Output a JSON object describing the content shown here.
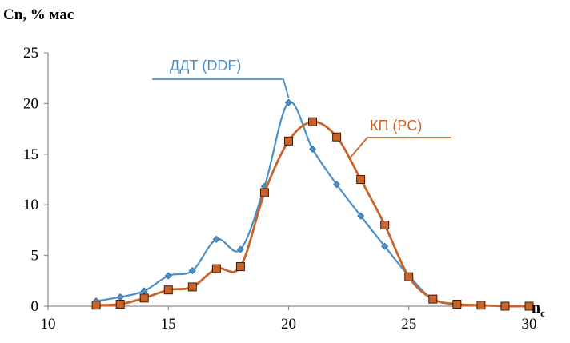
{
  "chart_data": {
    "type": "line",
    "ylabel": "Cn, % мас",
    "xlabel_main": "n",
    "xlabel_sub": "c",
    "xlim": [
      10,
      30
    ],
    "ylim": [
      0,
      25
    ],
    "x_ticks": [
      "10",
      "15",
      "20",
      "25",
      "30"
    ],
    "y_ticks": [
      "0",
      "5",
      "10",
      "15",
      "20",
      "25"
    ],
    "grid": false,
    "series": [
      {
        "name": "ДДТ (DDF)",
        "color": "#4a8fc9",
        "marker": "diamond",
        "x": [
          12,
          13,
          14,
          15,
          16,
          17,
          18,
          19,
          20,
          21,
          22,
          23,
          24,
          25,
          26,
          27,
          28,
          29,
          30
        ],
        "y": [
          0.5,
          0.9,
          1.5,
          3.0,
          3.5,
          6.6,
          5.6,
          11.8,
          20.1,
          15.5,
          12.0,
          8.9,
          5.9,
          3.0,
          0.7,
          0.2,
          0.1,
          0.0,
          0.0
        ]
      },
      {
        "name": "КП (PC)",
        "color": "#c8632a",
        "marker": "square",
        "x": [
          12,
          13,
          14,
          15,
          16,
          17,
          18,
          19,
          20,
          21,
          22,
          23,
          24,
          25,
          26,
          27,
          28,
          29,
          30
        ],
        "y": [
          0.1,
          0.2,
          0.8,
          1.6,
          1.9,
          3.7,
          3.9,
          11.2,
          16.3,
          18.2,
          16.7,
          12.5,
          8.0,
          2.9,
          0.7,
          0.2,
          0.1,
          0.0,
          0.0
        ]
      }
    ]
  }
}
